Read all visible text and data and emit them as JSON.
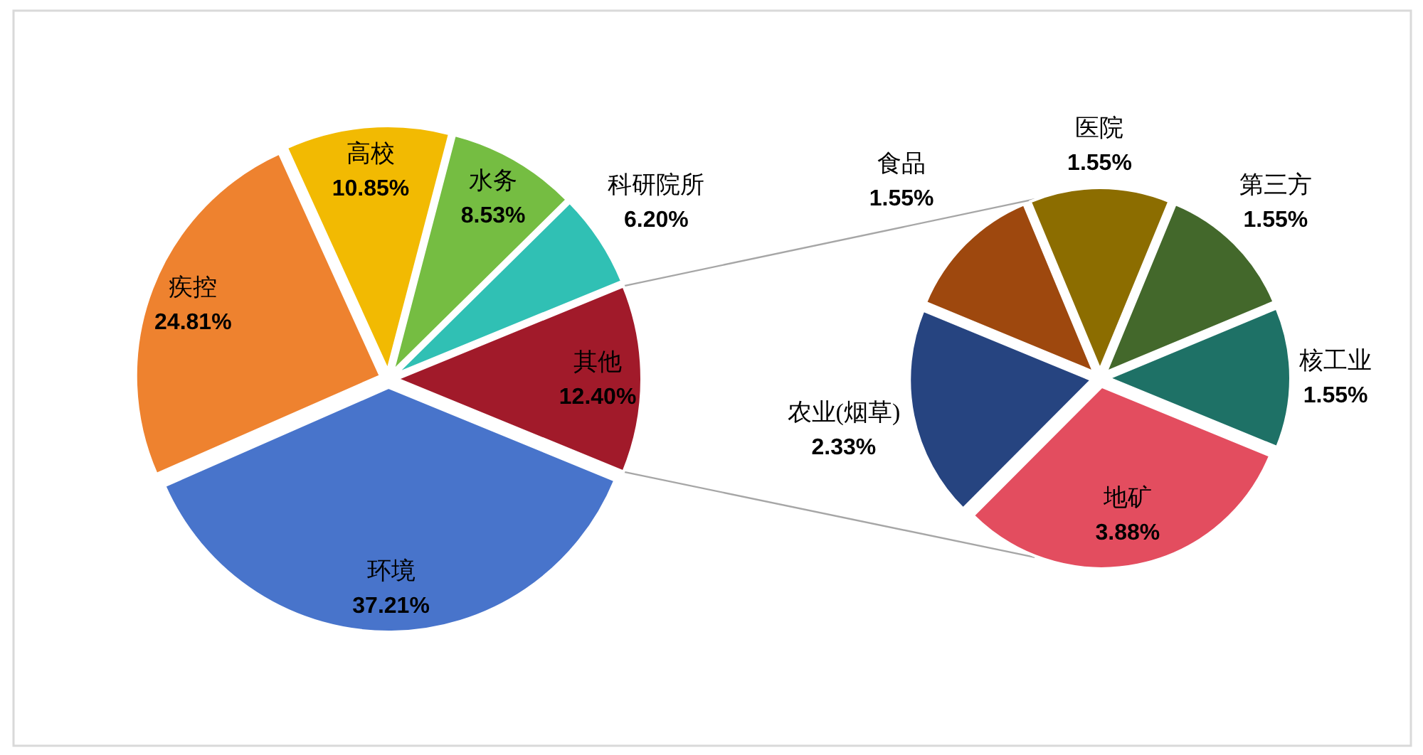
{
  "chart_data": [
    {
      "type": "pie",
      "categories": [
        "环境",
        "疾控",
        "高校",
        "水务",
        "科研院所",
        "其他"
      ],
      "values": [
        37.21,
        24.81,
        10.85,
        8.53,
        6.2,
        12.4
      ],
      "colors": [
        "#4874cb",
        "#ee822f",
        "#f2ba02",
        "#75bd42",
        "#30c0b4",
        "#a11a2a"
      ],
      "value_labels": [
        "37.21%",
        "24.81%",
        "10.85%",
        "8.53%",
        "6.20%",
        "12.40%"
      ]
    },
    {
      "type": "pie",
      "categories": [
        "地矿",
        "农业(烟草)",
        "食品",
        "医院",
        "第三方",
        "核工业"
      ],
      "values": [
        3.88,
        2.33,
        1.55,
        1.55,
        1.55,
        1.55
      ],
      "colors": [
        "#e34d5f",
        "#264480",
        "#9e480e",
        "#8c6d00",
        "#43682b",
        "#1e7166"
      ],
      "value_labels": [
        "3.88%",
        "2.33%",
        "1.55%",
        "1.55%",
        "1.55%",
        "1.55%"
      ]
    }
  ]
}
